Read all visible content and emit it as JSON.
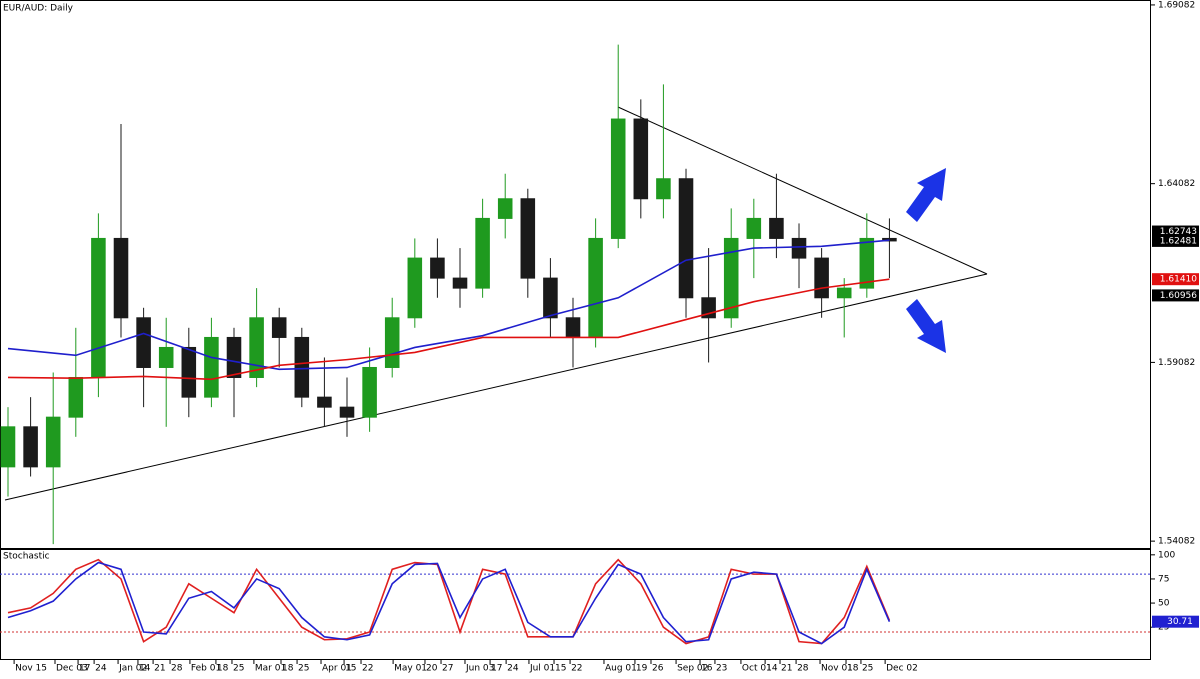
{
  "chart_data": [
    {
      "type": "candlestick",
      "title": "EUR/AUD: Daily",
      "up_color": "#1f9a1f",
      "down_color": "#1a1a1a",
      "open": [
        1.5616,
        1.5728,
        1.5616,
        1.5755,
        1.5866,
        1.6255,
        1.6033,
        1.5894,
        1.595,
        1.5811,
        1.5978,
        1.5866,
        1.6033,
        1.5978,
        1.5811,
        1.5783,
        1.5755,
        1.5894,
        1.6033,
        1.62,
        1.6144,
        1.6116,
        1.6311,
        1.6366,
        1.6144,
        1.6033,
        1.5978,
        1.6255,
        1.6589,
        1.6366,
        1.6422,
        1.6089,
        1.6033,
        1.6255,
        1.6311,
        1.6255,
        1.62,
        1.6089,
        1.6116,
        1.6255
      ],
      "high": [
        1.5783,
        1.5811,
        1.588,
        1.6005,
        1.6325,
        1.6575,
        1.6061,
        1.6033,
        1.6005,
        1.6033,
        1.6005,
        1.6116,
        1.6061,
        1.6005,
        1.5922,
        1.5866,
        1.595,
        1.6089,
        1.6255,
        1.6255,
        1.6228,
        1.6366,
        1.6436,
        1.6394,
        1.62,
        1.6089,
        1.6311,
        1.6797,
        1.6644,
        1.6686,
        1.645,
        1.6228,
        1.6339,
        1.6366,
        1.6436,
        1.6297,
        1.6228,
        1.6144,
        1.6325,
        1.6311
      ],
      "low": [
        1.5533,
        1.5589,
        1.54,
        1.57,
        1.5811,
        1.5978,
        1.5783,
        1.5728,
        1.5755,
        1.5783,
        1.5755,
        1.5839,
        1.5894,
        1.5783,
        1.5728,
        1.57,
        1.5714,
        1.5866,
        1.6005,
        1.6089,
        1.6061,
        1.6089,
        1.6255,
        1.6089,
        1.5978,
        1.5894,
        1.595,
        1.6228,
        1.6311,
        1.6311,
        1.6033,
        1.5908,
        1.6005,
        1.6144,
        1.62,
        1.6116,
        1.6033,
        1.5978,
        1.6089,
        1.6144
      ],
      "close": [
        1.5728,
        1.5616,
        1.5755,
        1.5866,
        1.6255,
        1.6033,
        1.5894,
        1.595,
        1.5811,
        1.5978,
        1.5866,
        1.6033,
        1.5978,
        1.5811,
        1.5783,
        1.5755,
        1.5894,
        1.6033,
        1.62,
        1.6144,
        1.6116,
        1.6311,
        1.6366,
        1.6144,
        1.6033,
        1.5978,
        1.6255,
        1.6589,
        1.6366,
        1.6422,
        1.6089,
        1.6033,
        1.6255,
        1.6311,
        1.6255,
        1.62,
        1.6089,
        1.6116,
        1.6255,
        1.6248
      ],
      "xlim": [
        -0.354,
        50.53
      ],
      "xticks": [
        {
          "value": 0.27,
          "label": "Nov 15"
        },
        {
          "value": 2.08,
          "label": "Dec 03"
        },
        {
          "value": 3.1,
          "label": "17"
        },
        {
          "value": 3.81,
          "label": "24"
        },
        {
          "value": 4.87,
          "label": "Jan 02"
        },
        {
          "value": 5.75,
          "label": "14"
        },
        {
          "value": 6.42,
          "label": "21"
        },
        {
          "value": 7.17,
          "label": "28"
        },
        {
          "value": 8.05,
          "label": "Feb 01"
        },
        {
          "value": 9.2,
          "label": "18"
        },
        {
          "value": 9.91,
          "label": "25"
        },
        {
          "value": 10.88,
          "label": "Mar 01"
        },
        {
          "value": 12.08,
          "label": "18"
        },
        {
          "value": 12.79,
          "label": "25"
        },
        {
          "value": 13.85,
          "label": "Apr 01"
        },
        {
          "value": 14.87,
          "label": "15"
        },
        {
          "value": 15.62,
          "label": "22"
        },
        {
          "value": 17.04,
          "label": "May 01"
        },
        {
          "value": 18.45,
          "label": "20"
        },
        {
          "value": 19.16,
          "label": "27"
        },
        {
          "value": 20.22,
          "label": "Jun 03"
        },
        {
          "value": 21.33,
          "label": "17"
        },
        {
          "value": 22.04,
          "label": "24"
        },
        {
          "value": 23.05,
          "label": "Jul 01"
        },
        {
          "value": 24.16,
          "label": "15"
        },
        {
          "value": 24.87,
          "label": "22"
        },
        {
          "value": 26.37,
          "label": "Aug 01"
        },
        {
          "value": 27.74,
          "label": "19"
        },
        {
          "value": 28.45,
          "label": "26"
        },
        {
          "value": 29.56,
          "label": "Sep 02"
        },
        {
          "value": 30.62,
          "label": "16"
        },
        {
          "value": 31.28,
          "label": "23"
        },
        {
          "value": 32.43,
          "label": "Oct 01"
        },
        {
          "value": 33.5,
          "label": "14"
        },
        {
          "value": 34.16,
          "label": "21"
        },
        {
          "value": 34.87,
          "label": "28"
        },
        {
          "value": 35.93,
          "label": "Nov 01"
        },
        {
          "value": 37.08,
          "label": "18"
        },
        {
          "value": 37.74,
          "label": "25"
        },
        {
          "value": 38.81,
          "label": "Dec 02"
        }
      ],
      "ylim": [
        1.5389,
        1.6922
      ],
      "yticks": [
        1.54082,
        1.59082,
        1.64082,
        1.69082
      ],
      "series": [
        {
          "color": "#1f1fcc",
          "x": [
            0,
            3,
            6,
            9,
            12,
            15,
            18,
            21,
            24,
            27,
            30,
            33,
            36,
            39
          ],
          "values": [
            1.5947,
            1.5928,
            1.5989,
            1.5922,
            1.5889,
            1.5894,
            1.595,
            1.5983,
            1.6039,
            1.6089,
            1.6194,
            1.6228,
            1.6233,
            1.625
          ]
        },
        {
          "color": "#e01010",
          "x": [
            0,
            3,
            6,
            9,
            12,
            15,
            18,
            21,
            24,
            27,
            30,
            33,
            36,
            39
          ],
          "values": [
            1.5866,
            1.5864,
            1.5869,
            1.5861,
            1.59,
            1.5916,
            1.5936,
            1.5978,
            1.5978,
            1.5978,
            1.6028,
            1.6078,
            1.6116,
            1.6141
          ]
        }
      ],
      "price_labels": [
        {
          "value": 1.62743,
          "color": "#000000"
        },
        {
          "value": 1.62481,
          "color": "#000000"
        },
        {
          "value": 1.6141,
          "label": "1.61410",
          "color": "#e01010"
        },
        {
          "value": 1.60956,
          "color": "#000000"
        }
      ]
    },
    {
      "type": "line",
      "title": "Stochastic",
      "ylim": [
        -9,
        105
      ],
      "yticks": [
        25,
        50,
        75,
        100
      ],
      "levels": [
        {
          "value": 80,
          "color": "#3030d0"
        },
        {
          "value": 20,
          "color": "#d03030"
        }
      ],
      "series": [
        {
          "color": "#e02020",
          "values": [
            40,
            45,
            60,
            85,
            95,
            75,
            10,
            25,
            70,
            55,
            40,
            85,
            55,
            25,
            12,
            13,
            20,
            85,
            92,
            90,
            20,
            85,
            80,
            15,
            15,
            15,
            70,
            95,
            70,
            25,
            8,
            15,
            85,
            80,
            80,
            10,
            8,
            35,
            88,
            32
          ]
        },
        {
          "color": "#2020d0",
          "values": [
            35,
            42,
            52,
            75,
            92,
            85,
            20,
            18,
            55,
            62,
            45,
            75,
            65,
            35,
            15,
            12,
            17,
            70,
            90,
            91,
            35,
            75,
            85,
            30,
            15,
            15,
            55,
            90,
            80,
            35,
            10,
            12,
            75,
            82,
            80,
            20,
            8,
            25,
            85,
            30.71
          ]
        }
      ],
      "value_label": {
        "value": 30.71,
        "color": "#2020d0"
      }
    }
  ]
}
